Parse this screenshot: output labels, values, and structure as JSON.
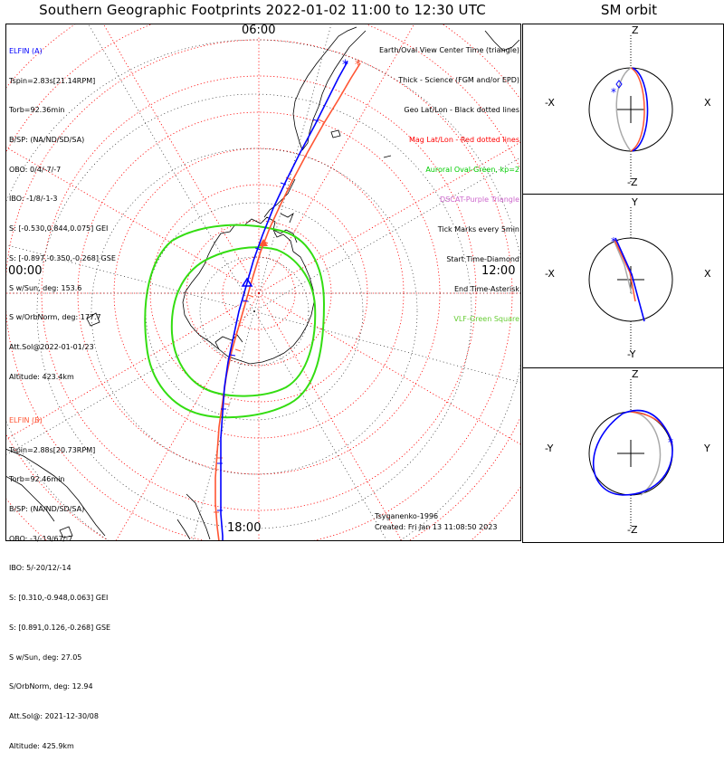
{
  "title": "Southern Geographic Footprints 2022-01-02 11:00 to 12:30 UTC",
  "sm_title": "SM orbit",
  "time_labels": {
    "top": "06:00",
    "left": "00:00",
    "right": "12:00",
    "bottom": "18:00"
  },
  "legend": [
    {
      "text": "Earth/Oval View Center Time (triangle)",
      "color": "#000000"
    },
    {
      "text": "Thick - Science (FGM and/or EPD)",
      "color": "#000000"
    },
    {
      "text": "Geo Lat/Lon - Black dotted lines",
      "color": "#000000"
    },
    {
      "text": "Mag Lat/Lon - Red dotted lines",
      "color": "#ff0000"
    },
    {
      "text": "Auroral Oval-Green, kp=2",
      "color": "#00cc00"
    },
    {
      "text": "DSCAT-Purple Triangle",
      "color": "#cc66cc"
    },
    {
      "text": "Tick Marks every 5min",
      "color": "#000000"
    },
    {
      "text": "Start Time-Diamond",
      "color": "#000000"
    },
    {
      "text": "End Time-Asterisk",
      "color": "#000000"
    },
    {
      "text": "VLF-Green Square",
      "color": "#66cc33"
    }
  ],
  "elfin_a": {
    "name": "ELFIN (A)",
    "color": "#0000ff",
    "lines": [
      "Tspin=2.83s[21.14RPM]",
      "Torb=92.36min",
      "B/SP: (NA/ND/SD/SA)",
      "OBO: 0/4/-7/-7",
      "IBO: -1/8/-1-3",
      "S: [-0.530,0.844,0.075] GEI",
      "S: [-0.897,-0.350,-0.268] GSE",
      "S w/Sun, deg: 153.6",
      "S w/OrbNorm, deg: 177.7",
      "Att.Sol@2022-01-01/23",
      "Altitude: 423.4km"
    ]
  },
  "elfin_b": {
    "name": "ELFIN (B)",
    "color": "#ff5533",
    "lines": [
      "Tspin=2.88s[20.73RPM]",
      "Torb=92.46min",
      "B/SP: (NA/ND/SD/SA)",
      "OBO: -3/-19/67/-7",
      "IBO: 5/-20/12/-14",
      "S: [0.310,-0.948,0.063] GEI",
      "S: [0.891,0.126,-0.268] GSE",
      "S w/Sun, deg: 27.05",
      "S/OrbNorm, deg: 12.94",
      "Att.Sol@: 2021-12-30/08",
      "Altitude: 425.9km"
    ]
  },
  "credit_model": "Tsyganenko-1996",
  "credit_created": "Created: Fri Jan 13 11:08:50 2023",
  "sm_panels": [
    {
      "top": "Z",
      "bottom": "-Z",
      "left": "-X",
      "right": "X"
    },
    {
      "top": "Y",
      "bottom": "-Y",
      "left": "-X",
      "right": "X"
    },
    {
      "top": "Z",
      "bottom": "-Z",
      "left": "-Y",
      "right": "Y"
    }
  ],
  "colors": {
    "elfin_a": "#0000ff",
    "elfin_b": "#ff5533",
    "oval": "#33dd11",
    "mag_grid": "#ff0000",
    "geo_grid": "#000000"
  }
}
